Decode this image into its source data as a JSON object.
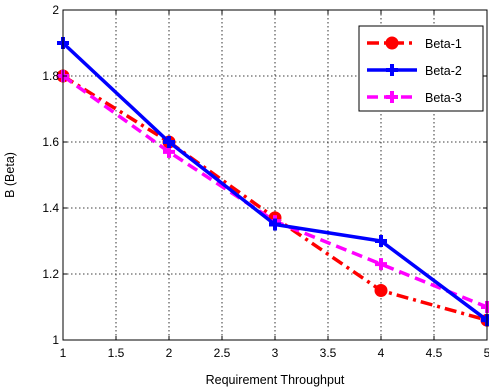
{
  "chart_data": {
    "type": "line",
    "title": "",
    "xlabel": "Requirement Throughput",
    "ylabel": "B (Beta)",
    "xlim": [
      1,
      5
    ],
    "ylim": [
      1,
      2
    ],
    "xticks": [
      "1",
      "1.5",
      "2",
      "2.5",
      "3",
      "3.5",
      "4",
      "4.5",
      "5"
    ],
    "yticks": [
      "1",
      "1.2",
      "1.4",
      "1.6",
      "1.8",
      "2"
    ],
    "grid": true,
    "legend_position": "top-right",
    "x": [
      1,
      2,
      3,
      4,
      5
    ],
    "series": [
      {
        "name": "Beta-1",
        "values": [
          1.8,
          1.6,
          1.37,
          1.15,
          1.06
        ],
        "color": "#ff0000",
        "line_style": "dash-dot",
        "marker": "circle"
      },
      {
        "name": "Beta-2",
        "values": [
          1.9,
          1.6,
          1.35,
          1.3,
          1.06
        ],
        "color": "#0000ff",
        "line_style": "solid",
        "marker": "plus"
      },
      {
        "name": "Beta-3",
        "values": [
          1.8,
          1.57,
          1.36,
          1.23,
          1.1
        ],
        "color": "#ff00ff",
        "line_style": "dashed",
        "marker": "plus"
      }
    ]
  }
}
